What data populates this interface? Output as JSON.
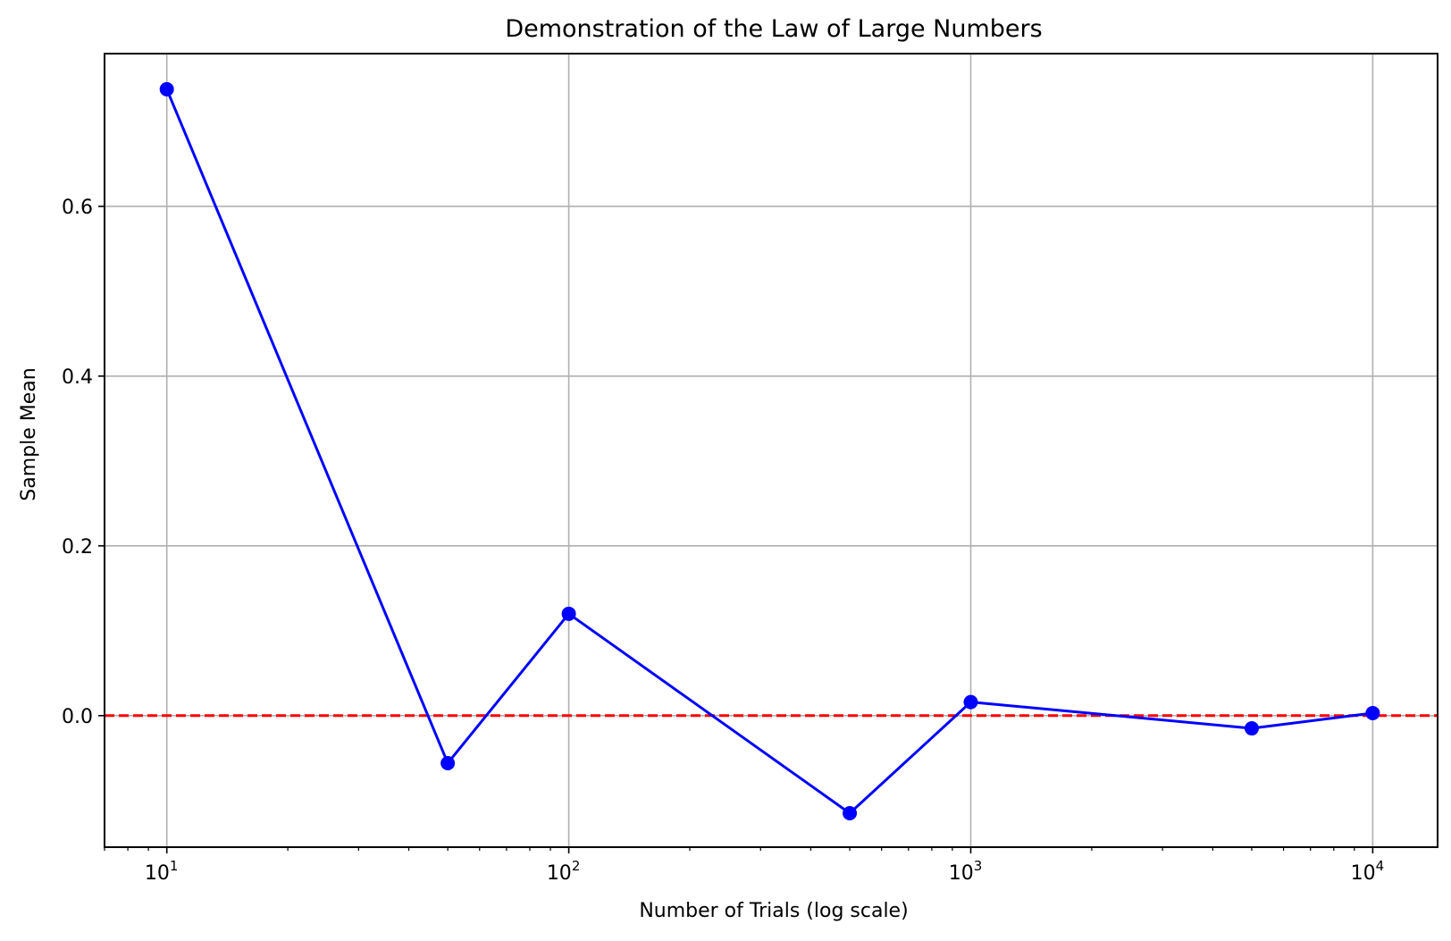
{
  "chart_data": {
    "type": "line",
    "title": "Demonstration of the Law of Large Numbers",
    "xlabel": "Number of Trials (log scale)",
    "ylabel": "Sample Mean",
    "xscale": "log",
    "xlim": [
      7,
      14500
    ],
    "ylim": [
      -0.155,
      0.78
    ],
    "grid": true,
    "x_ticks": [
      {
        "value": 10,
        "base": "10",
        "exp": "1"
      },
      {
        "value": 100,
        "base": "10",
        "exp": "2"
      },
      {
        "value": 1000,
        "base": "10",
        "exp": "3"
      },
      {
        "value": 10000,
        "base": "10",
        "exp": "4"
      }
    ],
    "y_ticks": [
      {
        "value": 0.0,
        "label": "0.0"
      },
      {
        "value": 0.2,
        "label": "0.2"
      },
      {
        "value": 0.4,
        "label": "0.4"
      },
      {
        "value": 0.6,
        "label": "0.6"
      }
    ],
    "series": [
      {
        "x": [
          10,
          50,
          100,
          500,
          1000,
          5000,
          10000
        ],
        "y": [
          0.738,
          -0.056,
          0.12,
          -0.115,
          0.016,
          -0.015,
          0.003
        ],
        "color": "#0000ff",
        "marker": "circle",
        "line_style": "solid"
      }
    ],
    "reference_line": {
      "y": 0.0,
      "color": "#ff0000",
      "line_style": "dashed"
    },
    "colors": {
      "grid": "#b0b0b0",
      "axes": "#000000",
      "background": "#ffffff"
    }
  }
}
